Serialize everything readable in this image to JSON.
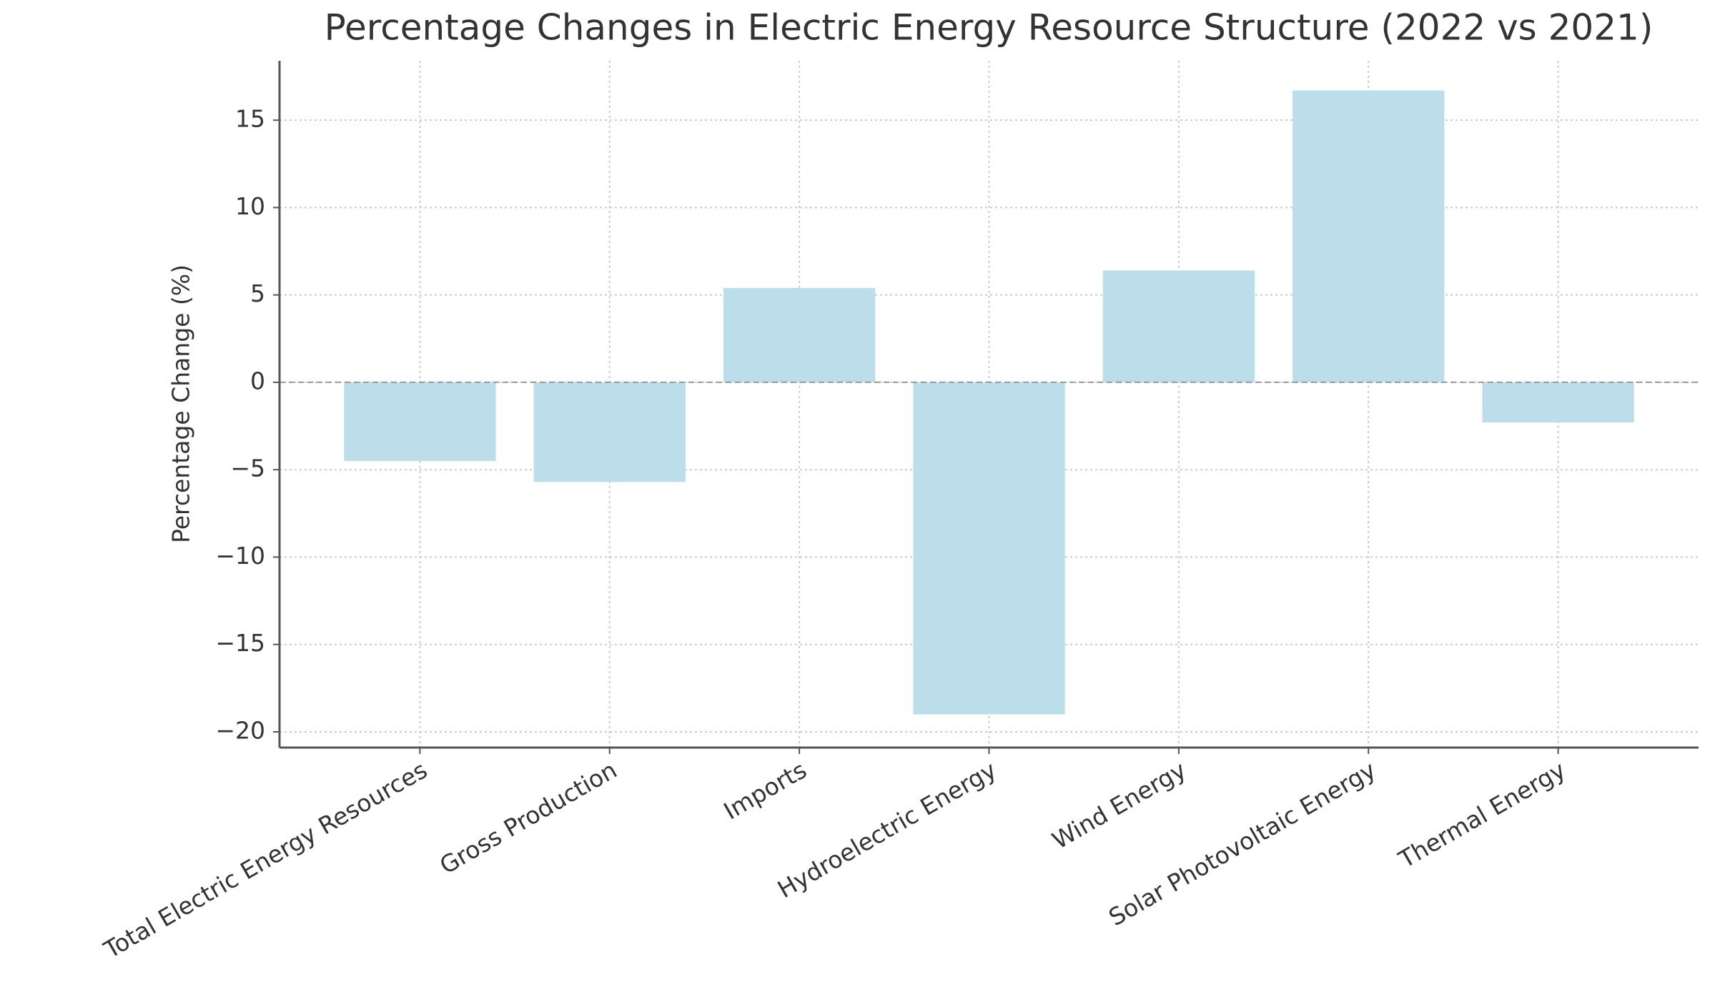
{
  "chart_data": {
    "type": "bar",
    "title": "Percentage Changes in Electric Energy Resource Structure (2022 vs 2021)",
    "y_label": "Percentage Change (%)",
    "categories": [
      "Total Electric Energy Resources",
      "Gross Production",
      "Imports",
      "Hydroelectric Energy",
      "Wind Energy",
      "Solar Photovoltaic Energy",
      "Thermal Energy"
    ],
    "values": [
      -4.5,
      -5.7,
      5.4,
      -19.0,
      6.4,
      16.7,
      -2.3
    ],
    "color": "#bcdeea",
    "ylim": [
      -20.9,
      18.4
    ],
    "yticks": [
      {
        "value": -20,
        "label": "−20"
      },
      {
        "value": -15,
        "label": "−15"
      },
      {
        "value": -10,
        "label": "−10"
      },
      {
        "value": -5,
        "label": "−5"
      },
      0,
      5,
      10,
      15
    ],
    "grid": true
  }
}
